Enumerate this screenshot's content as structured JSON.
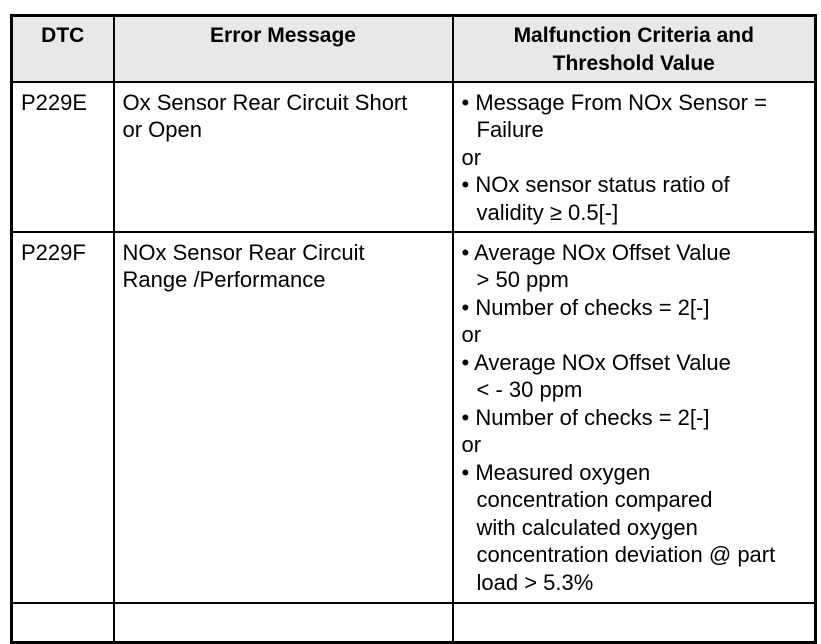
{
  "table": {
    "header_bg": "#e8e8e8",
    "border_color": "#000000",
    "headers": {
      "dtc": "DTC",
      "error_message": "Error Message",
      "criteria_line1": "Malfunction Criteria and",
      "criteria_line2": "Threshold Value"
    },
    "rows": [
      {
        "dtc": "P229E",
        "error_lines": [
          "Ox Sensor Rear Circuit Short",
          "or Open"
        ],
        "criteria_lines": [
          "• Message From NOx Sensor =",
          "Failure",
          "or",
          "• NOx sensor status ratio of",
          "validity ≥ 0.5[-]"
        ]
      },
      {
        "dtc": "P229F",
        "error_lines": [
          "NOx Sensor Rear Circuit",
          "Range /Performance"
        ],
        "criteria_lines": [
          "• Average NOx Offset Value",
          "> 50 ppm",
          "• Number of checks = 2[-]",
          "or",
          "• Average NOx Offset Value",
          "< - 30 ppm",
          "• Number of checks = 2[-]",
          "or",
          "• Measured oxygen",
          "concentration compared",
          "with calculated oxygen",
          "concentration deviation @ part",
          "load > 5.3%"
        ]
      }
    ]
  }
}
